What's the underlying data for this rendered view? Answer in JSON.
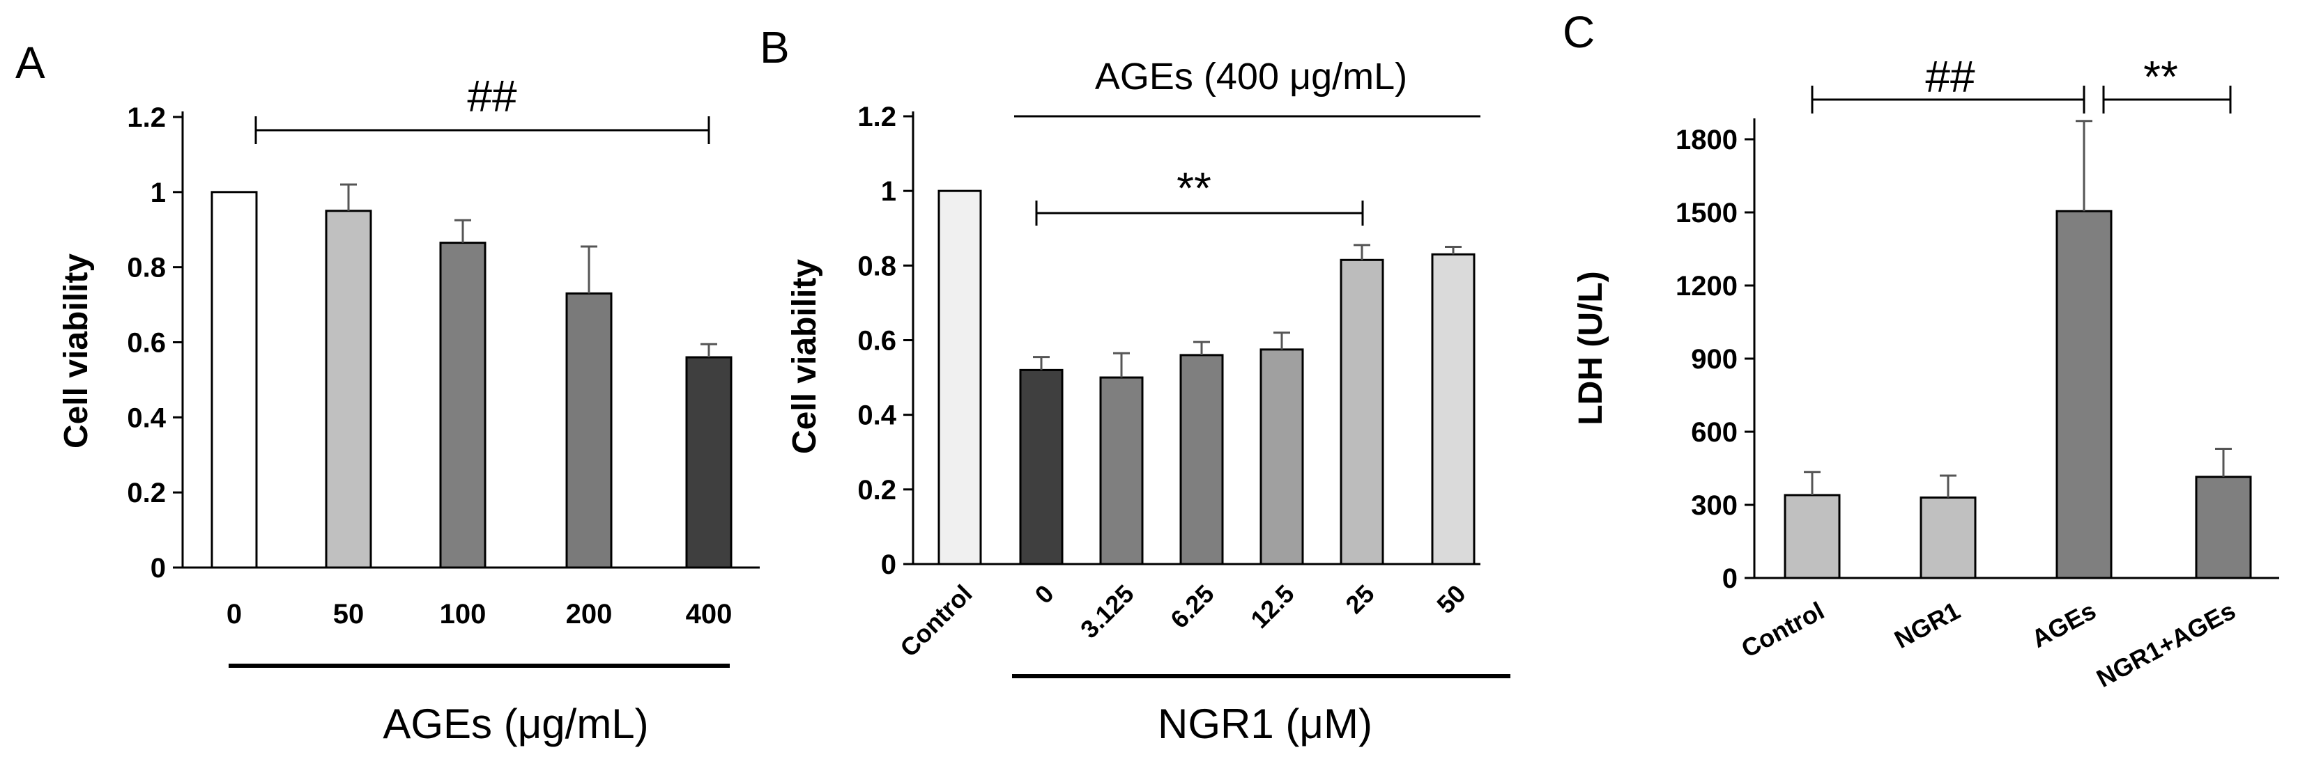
{
  "chart_data": [
    {
      "type": "bar",
      "panel": "A",
      "categories": [
        "0",
        "50",
        "100",
        "200",
        "400"
      ],
      "values": [
        1.0,
        0.95,
        0.865,
        0.73,
        0.56
      ],
      "errors": [
        0.0,
        0.07,
        0.06,
        0.125,
        0.035
      ],
      "colors": [
        "#ffffff",
        "#c0c0c0",
        "#7f7f7f",
        "#7a7a7a",
        "#3f3f3f"
      ],
      "ylabel": "Cell viability",
      "xlabel": "AGEs (μg/mL)",
      "ylim": [
        0,
        1.2
      ],
      "yticks": [
        "0",
        "0.2",
        "0.4",
        "0.6",
        "0.8",
        "1",
        "1.2"
      ],
      "significance": "##"
    },
    {
      "type": "bar",
      "panel": "B",
      "categories": [
        "Control",
        "0",
        "3.125",
        "6.25",
        "12.5",
        "25",
        "50"
      ],
      "values": [
        1.0,
        0.52,
        0.5,
        0.56,
        0.575,
        0.815,
        0.83
      ],
      "errors": [
        0.0,
        0.035,
        0.065,
        0.035,
        0.045,
        0.04,
        0.02
      ],
      "colors": [
        "#f0f0f0",
        "#3f3f3f",
        "#7f7f7f",
        "#7f7f7f",
        "#a0a0a0",
        "#bcbcbc",
        "#dadada"
      ],
      "ylabel": "Cell viability",
      "xlabel": "NGR1 (μM)",
      "top_label": "AGEs (400 μg/mL)",
      "ylim": [
        0,
        1.2
      ],
      "yticks": [
        "0",
        "0.2",
        "0.4",
        "0.6",
        "0.8",
        "1",
        "1.2"
      ],
      "significance": "**"
    },
    {
      "type": "bar",
      "panel": "C",
      "categories": [
        "Control",
        "NGR1",
        "AGEs",
        "NGR1+AGEs"
      ],
      "values": [
        340,
        330,
        1505,
        415
      ],
      "errors": [
        95,
        90,
        370,
        115
      ],
      "colors": [
        "#c0c0c0",
        "#c0c0c0",
        "#7f7f7f",
        "#7f7f7f"
      ],
      "ylabel": "LDH (U/L)",
      "xlabel": "",
      "ylim": [
        0,
        1800
      ],
      "yticks": [
        "0",
        "300",
        "600",
        "900",
        "1200",
        "1500",
        "1800"
      ],
      "significance": [
        "##",
        "**"
      ]
    }
  ]
}
